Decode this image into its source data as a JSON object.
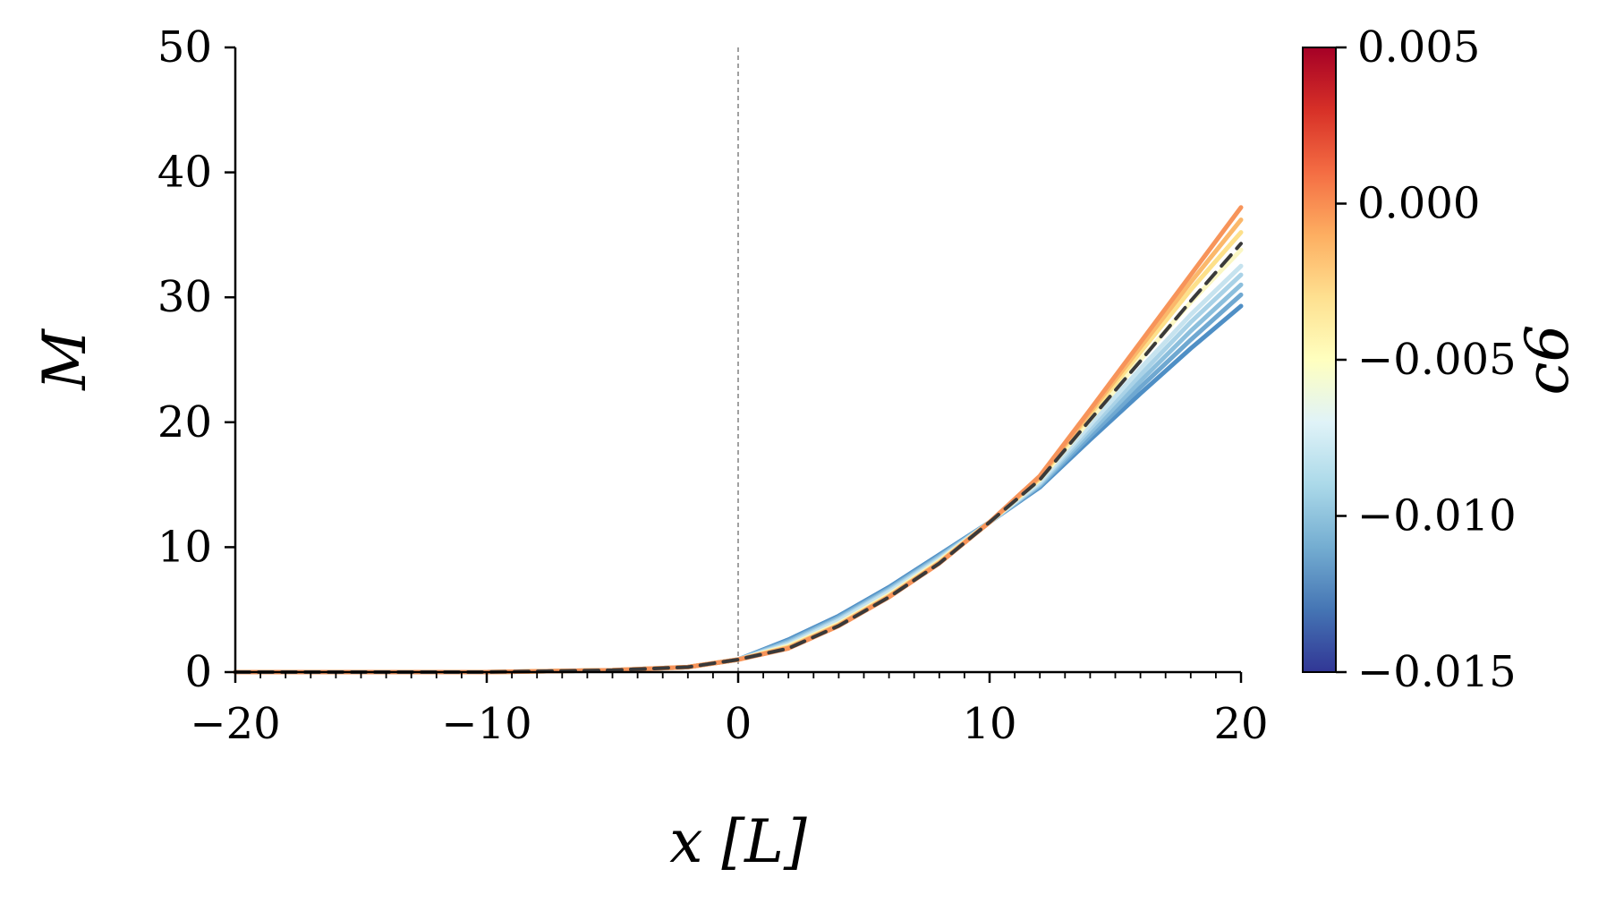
{
  "chart_data": {
    "type": "line",
    "xlabel": "x [L]",
    "ylabel": "M",
    "xlim": [
      -20,
      20
    ],
    "ylim": [
      0,
      50
    ],
    "x_ticks": [
      -20,
      -10,
      0,
      10,
      20
    ],
    "x_tick_labels": [
      "−20",
      "−10",
      "0",
      "10",
      "20"
    ],
    "y_ticks": [
      0,
      10,
      20,
      30,
      40,
      50
    ],
    "y_tick_labels": [
      "0",
      "10",
      "20",
      "30",
      "40",
      "50"
    ],
    "vertical_reference_line": {
      "x": 0,
      "style": "dashed",
      "color": "#808080"
    },
    "grid": false,
    "colormap": "RdYlBu_r",
    "colorbar": {
      "label": "c6",
      "range": [
        -0.015,
        0.005
      ],
      "ticks": [
        -0.015,
        -0.01,
        -0.005,
        0.0,
        0.005
      ],
      "tick_labels": [
        "−0.015",
        "−0.010",
        "−0.005",
        "0.000",
        "0.005"
      ]
    },
    "series": [
      {
        "c6": -0.0125,
        "color": "#4f8fc5",
        "x": [
          -20,
          -10,
          -5,
          -2,
          0,
          2,
          4,
          6,
          8,
          10,
          12,
          14,
          16,
          18,
          20
        ],
        "y": [
          0,
          0,
          0.15,
          0.4,
          1.0,
          2.6,
          4.5,
          6.8,
          9.4,
          12.0,
          14.8,
          18.6,
          22.3,
          25.9,
          29.3
        ]
      },
      {
        "c6": -0.0115,
        "color": "#6fa8d1",
        "x": [
          -20,
          -10,
          -5,
          -2,
          0,
          2,
          4,
          6,
          8,
          10,
          12,
          14,
          16,
          18,
          20
        ],
        "y": [
          0,
          0,
          0.15,
          0.4,
          1.0,
          2.5,
          4.4,
          6.7,
          9.3,
          12.0,
          14.9,
          18.9,
          22.8,
          26.6,
          30.2
        ]
      },
      {
        "c6": -0.0105,
        "color": "#8cbfdd",
        "x": [
          -20,
          -10,
          -5,
          -2,
          0,
          2,
          4,
          6,
          8,
          10,
          12,
          14,
          16,
          18,
          20
        ],
        "y": [
          0,
          0,
          0.15,
          0.4,
          1.0,
          2.4,
          4.3,
          6.6,
          9.2,
          12.0,
          15.0,
          19.2,
          23.3,
          27.3,
          31.0
        ]
      },
      {
        "c6": -0.0095,
        "color": "#a9d2e7",
        "x": [
          -20,
          -10,
          -5,
          -2,
          0,
          2,
          4,
          6,
          8,
          10,
          12,
          14,
          16,
          18,
          20
        ],
        "y": [
          0,
          0,
          0.15,
          0.4,
          1.0,
          2.3,
          4.2,
          6.5,
          9.1,
          12.0,
          15.1,
          19.5,
          23.8,
          28.0,
          31.8
        ]
      },
      {
        "c6": -0.0085,
        "color": "#c6e3ef",
        "x": [
          -20,
          -10,
          -5,
          -2,
          0,
          2,
          4,
          6,
          8,
          10,
          12,
          14,
          16,
          18,
          20
        ],
        "y": [
          0,
          0,
          0.15,
          0.4,
          1.0,
          2.2,
          4.1,
          6.4,
          9.0,
          12.0,
          15.2,
          19.8,
          24.3,
          28.6,
          32.5
        ]
      },
      {
        "c6": -0.0065,
        "color": "#fbf7c4",
        "x": [
          -20,
          -10,
          -5,
          -2,
          0,
          2,
          4,
          6,
          8,
          10,
          12,
          14,
          16,
          18,
          20
        ],
        "y": [
          0,
          0,
          0.15,
          0.4,
          1.0,
          2.1,
          3.9,
          6.2,
          8.9,
          12.0,
          15.4,
          20.2,
          25.0,
          29.6,
          33.8
        ]
      },
      {
        "c6": -0.0035,
        "color": "#fde08a",
        "x": [
          -20,
          -10,
          -5,
          -2,
          0,
          2,
          4,
          6,
          8,
          10,
          12,
          14,
          16,
          18,
          20
        ],
        "y": [
          0,
          0,
          0.15,
          0.4,
          1.0,
          2.0,
          3.8,
          6.1,
          8.8,
          12.0,
          15.5,
          20.6,
          25.6,
          30.6,
          35.2
        ]
      },
      {
        "c6": -0.0015,
        "color": "#fbb86b",
        "x": [
          -20,
          -10,
          -5,
          -2,
          0,
          2,
          4,
          6,
          8,
          10,
          12,
          14,
          16,
          18,
          20
        ],
        "y": [
          0,
          0,
          0.15,
          0.4,
          1.0,
          1.95,
          3.75,
          6.05,
          8.75,
          12.0,
          15.6,
          20.8,
          26.0,
          31.2,
          36.2
        ]
      },
      {
        "c6": -0.0005,
        "color": "#f7945a",
        "x": [
          -20,
          -10,
          -5,
          -2,
          0,
          2,
          4,
          6,
          8,
          10,
          12,
          14,
          16,
          18,
          20
        ],
        "y": [
          0,
          0,
          0.15,
          0.4,
          1.0,
          1.9,
          3.7,
          6.0,
          8.7,
          12.0,
          15.7,
          21.0,
          26.4,
          31.8,
          37.2
        ]
      },
      {
        "c6": null,
        "color": "#3a3a3a",
        "dashed": true,
        "x": [
          -20,
          -10,
          -5,
          -2,
          0,
          2,
          4,
          6,
          8,
          10,
          12,
          14,
          16,
          18,
          20
        ],
        "y": [
          0,
          0,
          0.15,
          0.4,
          1.0,
          1.9,
          3.7,
          6.0,
          8.7,
          12.0,
          15.4,
          20.2,
          24.9,
          29.7,
          34.3
        ]
      }
    ]
  }
}
